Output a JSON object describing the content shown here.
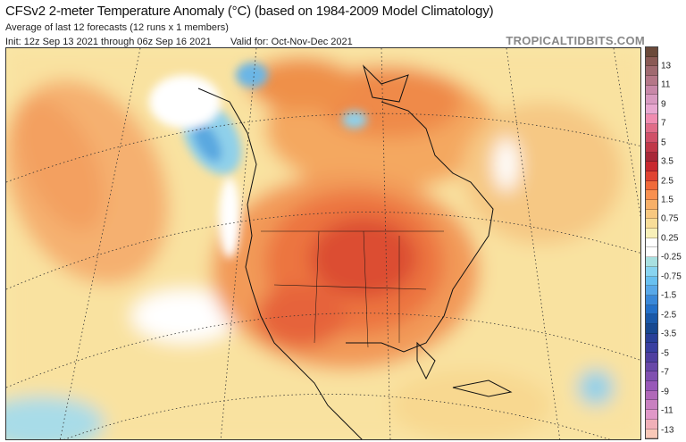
{
  "header": {
    "title": "CFSv2 2-meter Temperature Anomaly (°C) (based on 1984-2009 Model Climatology)",
    "subtitle": "Average of last 12 forecasts (12 runs x 1 members)",
    "init": "Init: 12z Sep 13 2021 through 06z Sep 16 2021",
    "valid": "Valid for: Oct-Nov-Dec 2021",
    "brand": "TROPICALTIDBITS.COM"
  },
  "colorbar": {
    "labels": [
      "13",
      "11",
      "9",
      "7",
      "5",
      "3.5",
      "2.5",
      "1.5",
      "0.75",
      "0.25",
      "-0.25",
      "-0.75",
      "-1.5",
      "-2.5",
      "-3.5",
      "-5",
      "-7",
      "-9",
      "-11",
      "-13"
    ],
    "colors": [
      "#6b4a3a",
      "#8a5a55",
      "#a06a70",
      "#b57788",
      "#c888a8",
      "#d89ac0",
      "#e8a8d0",
      "#f08cb0",
      "#e06c88",
      "#d05068",
      "#c03848",
      "#a82838",
      "#c82a30",
      "#e04432",
      "#f06a3a",
      "#f89050",
      "#f8b068",
      "#f8c880",
      "#f8dd98",
      "#f8f0b8",
      "#ffffff",
      "#ffffff",
      "#a8e0e0",
      "#88d4f0",
      "#68c0f0",
      "#58a8e8",
      "#3a88d8",
      "#2470c8",
      "#1a58a8",
      "#184890",
      "#2a4098",
      "#3a40a0",
      "#5040a0",
      "#6848a8",
      "#8050b0",
      "#9858b8",
      "#b068b8",
      "#c880c0",
      "#e098c8",
      "#f0b0b8",
      "#f8c8b8"
    ]
  },
  "map": {
    "region": "North America",
    "colors": {
      "warm_light": "#f9e7a8",
      "warm": "#f8c070",
      "warmer": "#f39550",
      "hot": "#e8643a",
      "hottest": "#d8482e",
      "cool": "#8fd0ea",
      "cold": "#5aa8e0",
      "neutral": "#ffffff"
    }
  }
}
